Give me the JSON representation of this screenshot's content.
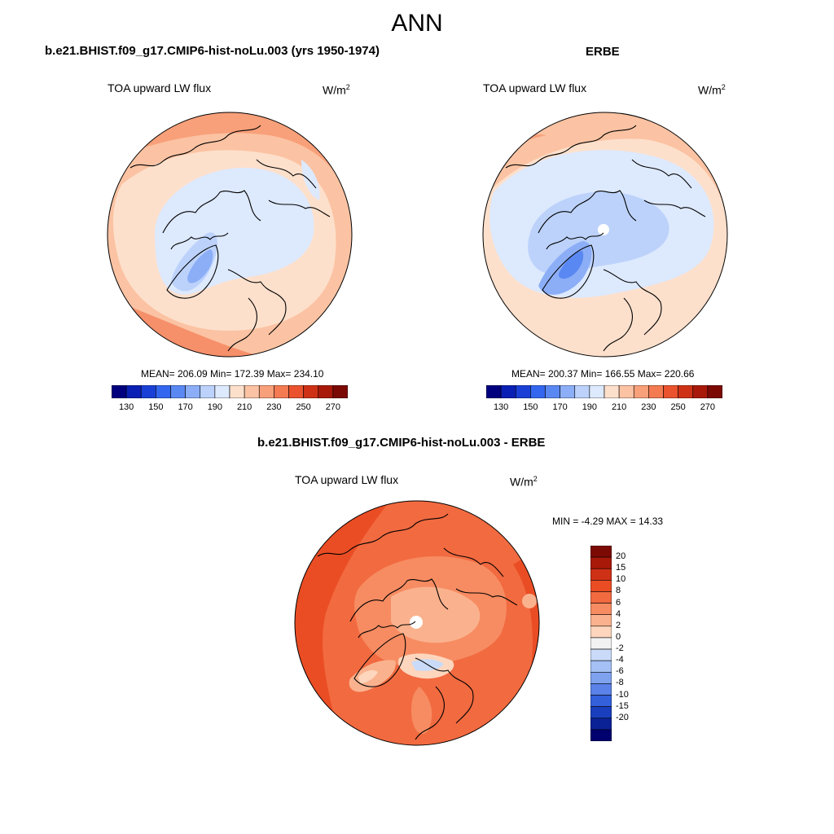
{
  "page_title": "ANN",
  "panels": [
    {
      "title": "b.e21.BHIST.f09_g17.CMIP6-hist-noLu.003 (yrs 1950-1974)",
      "variable": "TOA upward LW flux",
      "units_base": "W/m",
      "units_exp": "2",
      "stats": "MEAN= 206.09  Min= 172.39  Max= 234.10",
      "colorbar_labels": [
        "130",
        "150",
        "170",
        "190",
        "210",
        "230",
        "250",
        "270"
      ]
    },
    {
      "title": "ERBE",
      "variable": "TOA upward LW flux",
      "units_base": "W/m",
      "units_exp": "2",
      "stats": "MEAN= 200.37  Min= 166.55  Max= 220.66",
      "colorbar_labels": [
        "130",
        "150",
        "170",
        "190",
        "210",
        "230",
        "250",
        "270"
      ]
    },
    {
      "title": "b.e21.BHIST.f09_g17.CMIP6-hist-noLu.003 - ERBE",
      "variable": "TOA upward LW flux",
      "units_base": "W/m",
      "units_exp": "2",
      "stats": "MIN =  -4.29 MAX =  14.33",
      "colorbar_labels": [
        "20",
        "15",
        "10",
        "8",
        "6",
        "4",
        "2",
        "0",
        "-2",
        "-4",
        "-6",
        "-8",
        "-10",
        "-15",
        "-20"
      ]
    }
  ],
  "colors": {
    "abs_scale": [
      "#00007f",
      "#0a1fb4",
      "#1a3fd6",
      "#3366ee",
      "#5a88f2",
      "#8caef7",
      "#bcd2fb",
      "#dde9fd",
      "#fde0cc",
      "#fbc3a3",
      "#f8a07a",
      "#f47a52",
      "#ea532e",
      "#cf3116",
      "#a8190a",
      "#7c0a04"
    ],
    "diff_scale": [
      "#7c0a04",
      "#a8190a",
      "#cf3116",
      "#ea4d24",
      "#f26a40",
      "#f78c62",
      "#fab28e",
      "#fdd6bd",
      "#f2f2f2",
      "#c9dbf8",
      "#a4c0f4",
      "#7fa2ef",
      "#5a82e8",
      "#3460dc",
      "#1a3fbe",
      "#0b2296",
      "#00006e"
    ]
  }
}
